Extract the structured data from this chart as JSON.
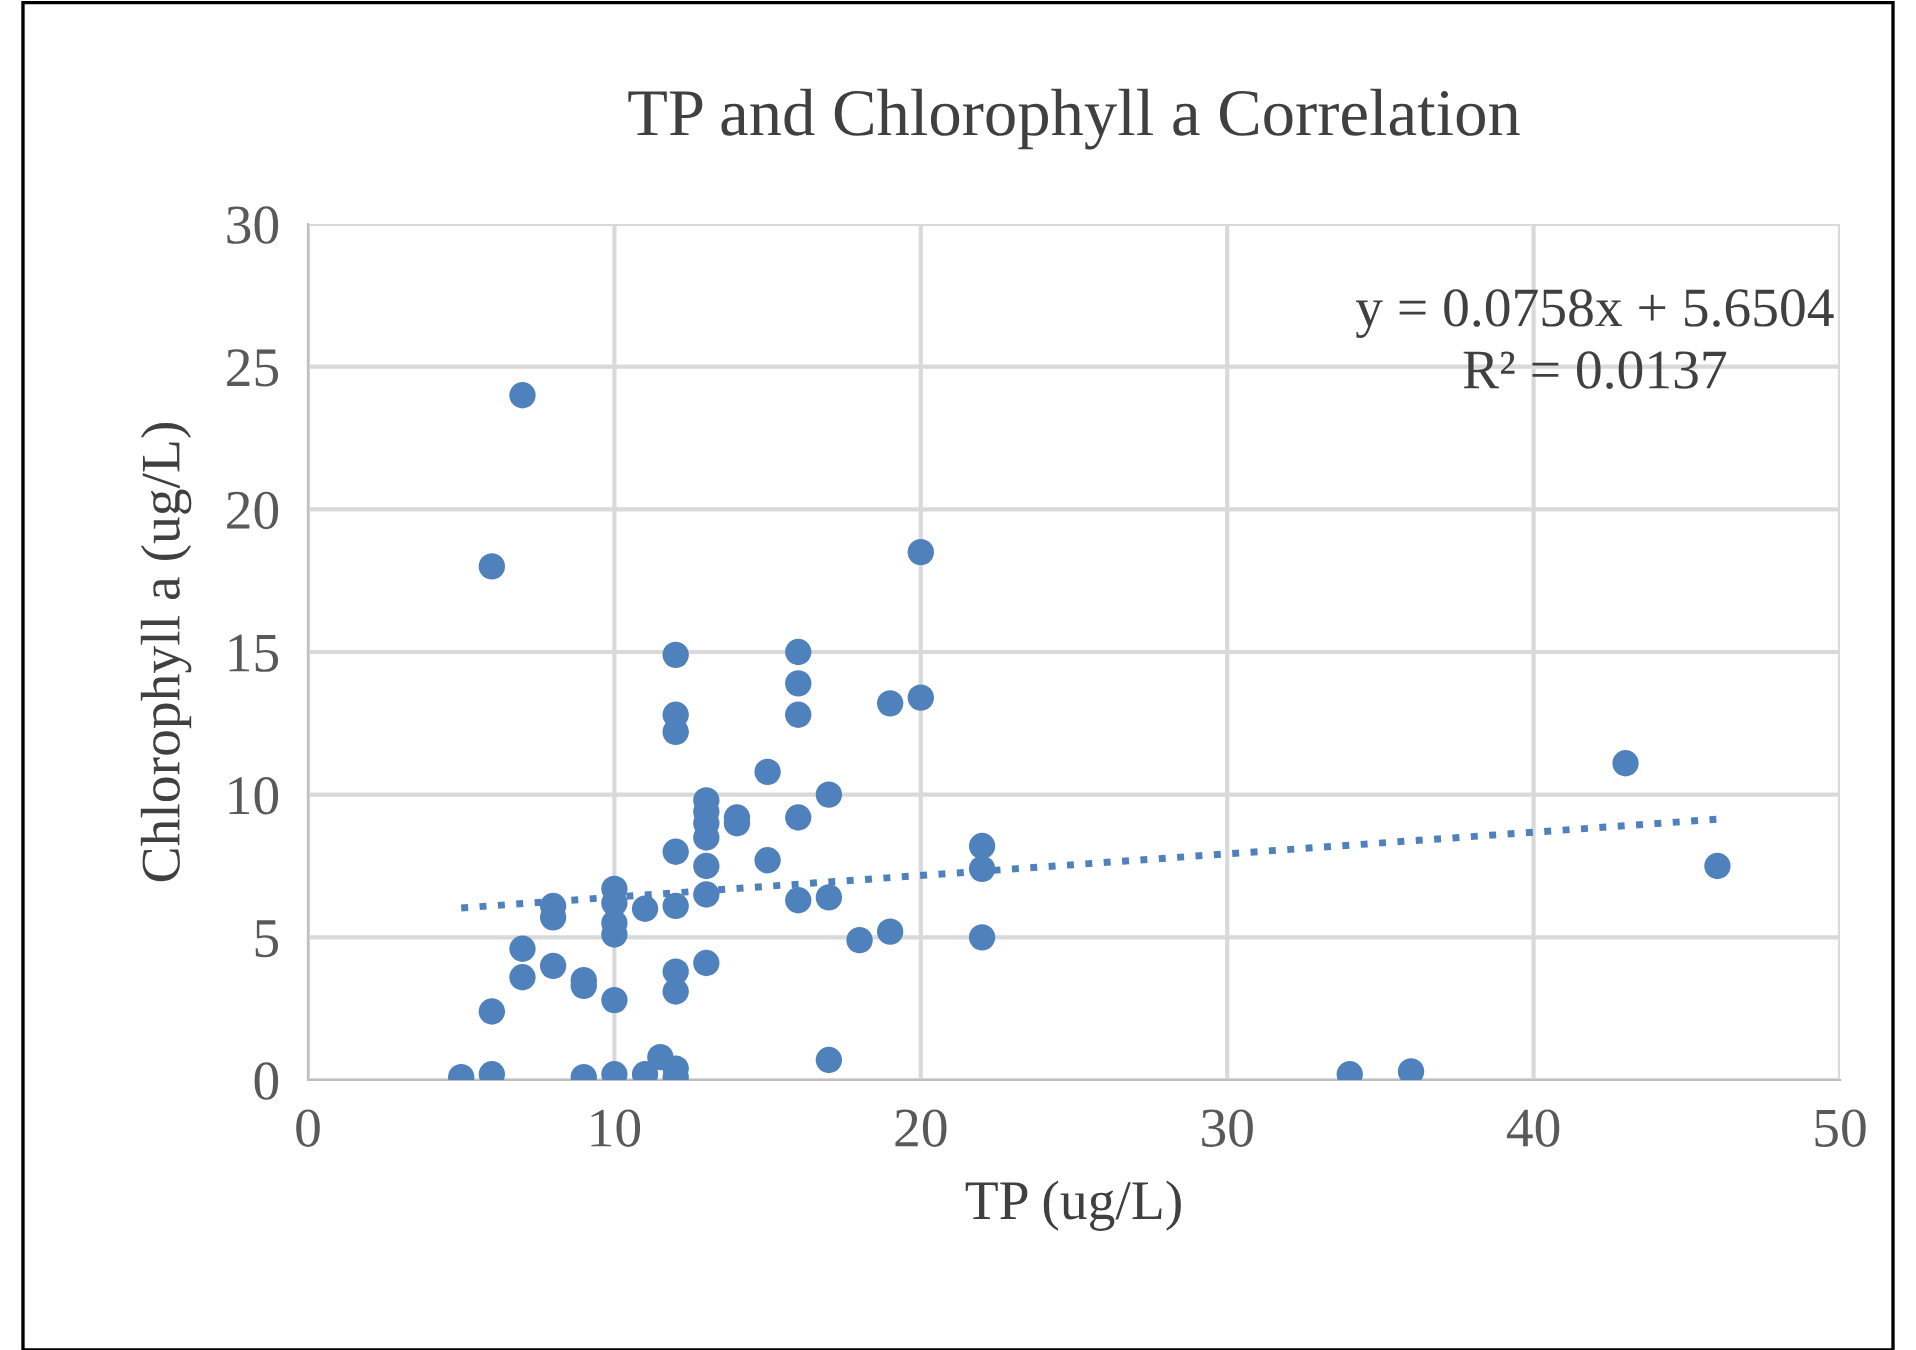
{
  "chart_data": {
    "type": "scatter",
    "title": "TP and Chlorophyll a Correlation",
    "xlabel": "TP (ug/L)",
    "ylabel": "Chlorophyll a (ug/L)",
    "xlim": [
      0,
      50
    ],
    "xticks": [
      0,
      10,
      20,
      30,
      40,
      50
    ],
    "ylim": [
      0,
      30
    ],
    "yticks": [
      0,
      5,
      10,
      15,
      20,
      25,
      30
    ],
    "grid": true,
    "marker": "circle",
    "annotations": [
      "y = 0.0758x + 5.6504\nR² = 0.0137"
    ],
    "series": [
      {
        "color": "#4f81bd",
        "x": [
          5,
          6,
          6,
          6,
          7,
          7,
          7,
          8,
          8,
          8,
          9,
          9,
          9,
          10,
          10,
          10,
          10,
          10,
          10,
          11,
          11,
          11.5,
          12,
          12,
          12,
          12,
          12,
          12,
          12,
          12,
          12,
          13,
          13,
          13,
          13,
          13,
          13,
          13,
          14,
          14,
          15,
          15,
          16,
          16,
          16,
          16,
          16,
          17,
          17,
          17,
          18,
          19,
          19,
          20,
          20,
          22,
          22,
          22,
          34,
          36,
          43,
          46
        ],
        "values": [
          0.1,
          0.2,
          2.4,
          18,
          24,
          4.6,
          3.6,
          6.1,
          5.7,
          4.0,
          3.5,
          3.3,
          0.1,
          6.7,
          6.2,
          5.5,
          5.1,
          2.8,
          0.2,
          6.0,
          0.2,
          0.8,
          14.9,
          12.8,
          12.2,
          8.0,
          6.1,
          3.8,
          3.1,
          0.4,
          0.1,
          9.8,
          9.4,
          9.0,
          8.5,
          7.5,
          6.5,
          4.1,
          9.2,
          9.0,
          10.8,
          7.7,
          15.0,
          13.9,
          12.8,
          9.2,
          6.3,
          10.0,
          6.4,
          0.7,
          4.9,
          13.2,
          5.2,
          18.5,
          13.4,
          8.2,
          7.4,
          5.0,
          0.2,
          0.3,
          11.1,
          7.5
        ]
      },
      {
        "type": "line",
        "color": "#4f81bd",
        "line_style": "dotted",
        "marker": "none",
        "x": [
          5,
          46
        ],
        "values": [
          6.03,
          9.14
        ]
      }
    ]
  }
}
